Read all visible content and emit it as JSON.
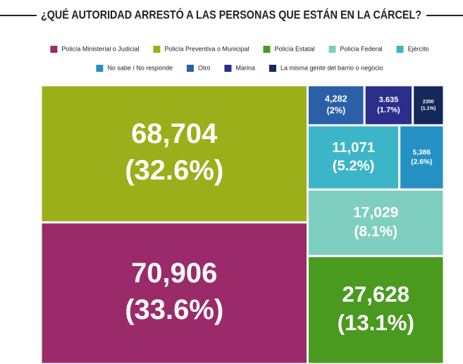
{
  "chart_data": {
    "type": "treemap",
    "title": "¿QUÉ AUTORIDAD ARRESTÓ A LAS PERSONAS QUE ESTÁN EN LA CÁRCEL?",
    "categories": [
      "Policía Ministerial o Judicial",
      "Policía Preventiva o Municipal",
      "Policía Estatal",
      "Policía Federal",
      "Ejército",
      "No sabe / No responde",
      "Otro",
      "Marina",
      "La misma gente del barrio o negocio"
    ],
    "values": [
      70906,
      68704,
      27628,
      17029,
      11071,
      5386,
      4282,
      3635,
      2350
    ],
    "value_labels": [
      "70,906",
      "68,704",
      "27,628",
      "17,029",
      "11,071",
      "5,386",
      "4,282",
      "3.635",
      "2350"
    ],
    "percents": [
      33.6,
      32.6,
      13.1,
      8.1,
      5.2,
      2.6,
      2,
      1.7,
      1.1
    ],
    "percent_labels": [
      "(33.6%)",
      "(32.6%)",
      "(13.1%)",
      "(8.1%)",
      "(5.2%)",
      "(2.6%)",
      "(2%)",
      "(1.7%)",
      "(1.1%)"
    ],
    "colors": [
      "#9b2a6b",
      "#9aaf1a",
      "#4a9a1f",
      "#7fcfc0",
      "#3db5c9",
      "#2591c3",
      "#2b5fa8",
      "#2b2e8a",
      "#14285a"
    ]
  }
}
